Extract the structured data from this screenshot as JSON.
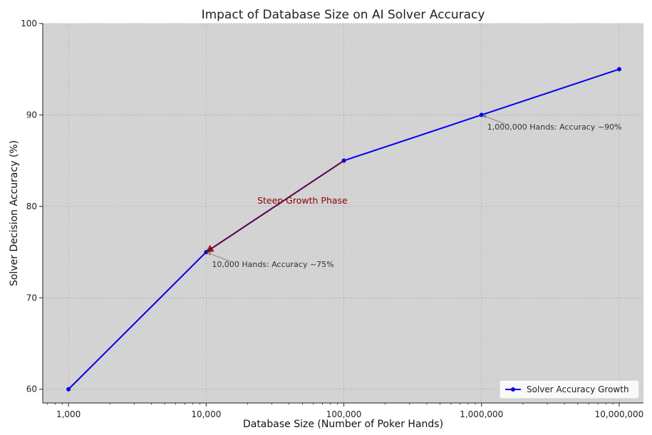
{
  "chart_data": {
    "type": "line",
    "title": "Impact of Database Size on AI Solver Accuracy",
    "xlabel": "Database Size (Number of Poker Hands)",
    "ylabel": "Solver Decision Accuracy (%)",
    "x_scale": "log",
    "xlim": [
      650,
      15000000
    ],
    "ylim": [
      58.5,
      100
    ],
    "grid": true,
    "legend_position": "bottom-right",
    "x_ticks": [
      {
        "value": 1000,
        "label": "1,000"
      },
      {
        "value": 10000,
        "label": "10,000"
      },
      {
        "value": 100000,
        "label": "100,000"
      },
      {
        "value": 1000000,
        "label": "1,000,000"
      },
      {
        "value": 10000000,
        "label": "10,000,000"
      }
    ],
    "y_ticks": [
      {
        "value": 60,
        "label": "60"
      },
      {
        "value": 70,
        "label": "70"
      },
      {
        "value": 80,
        "label": "80"
      },
      {
        "value": 90,
        "label": "90"
      },
      {
        "value": 100,
        "label": "100"
      }
    ],
    "series": [
      {
        "name": "Solver Accuracy Growth",
        "color": "#0000ee",
        "x": [
          1000,
          10000,
          100000,
          1000000,
          10000000
        ],
        "y": [
          60,
          75,
          85,
          90,
          95
        ]
      }
    ],
    "highlight_segment": {
      "label": "Steep Growth Phase",
      "label_x": 50000,
      "label_y": 80.3,
      "from": [
        100000,
        85
      ],
      "to": [
        10000,
        75
      ],
      "color": "#8b0000"
    },
    "annotations": [
      {
        "text": "10,000 Hands: Accuracy ~75%",
        "point": [
          10000,
          75
        ],
        "text_x": 11000,
        "text_y": 73.7
      },
      {
        "text": "1,000,000 Hands: Accuracy ~90%",
        "point": [
          1000000,
          90
        ],
        "text_x": 1100000,
        "text_y": 88.7
      }
    ],
    "colors": {
      "plot_background": "#d3d3d3",
      "grid": "#b0b0b0",
      "annotation_arrow": "#808080"
    }
  }
}
